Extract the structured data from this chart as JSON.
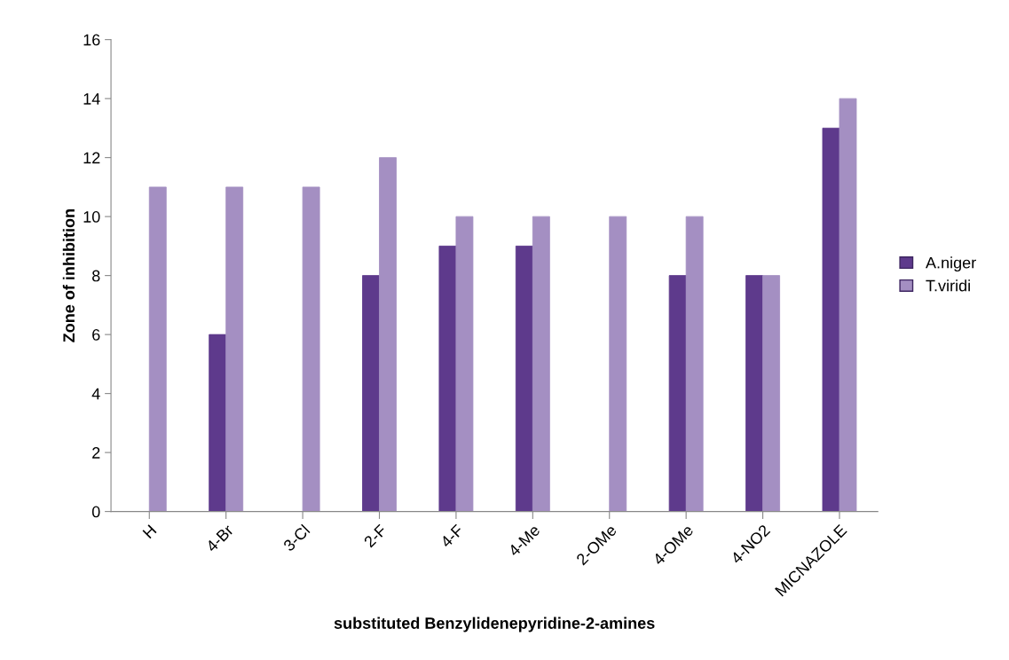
{
  "chart_data": {
    "type": "bar",
    "xlabel": "substituted Benzylidenepyridine-2-amines",
    "ylabel": "Zone of inhibition",
    "categories": [
      "H",
      "4-Br",
      "3-Cl",
      "2-F",
      "4-F",
      "4-Me",
      "2-OMe",
      "4-OMe",
      "4-NO2",
      "MICNAZOLE"
    ],
    "series": [
      {
        "name": "A.niger",
        "color": "#5e3a8c",
        "values": [
          0,
          6,
          0,
          8,
          9,
          9,
          0,
          8,
          8,
          13
        ]
      },
      {
        "name": "T.viridi",
        "color": "#a48fc2",
        "values": [
          11,
          11,
          11,
          12,
          10,
          10,
          10,
          10,
          8,
          14
        ]
      }
    ],
    "ylim": [
      0,
      16
    ],
    "yticks": [
      0,
      2,
      4,
      6,
      8,
      10,
      12,
      14,
      16
    ],
    "grid": false,
    "legend": "right"
  }
}
